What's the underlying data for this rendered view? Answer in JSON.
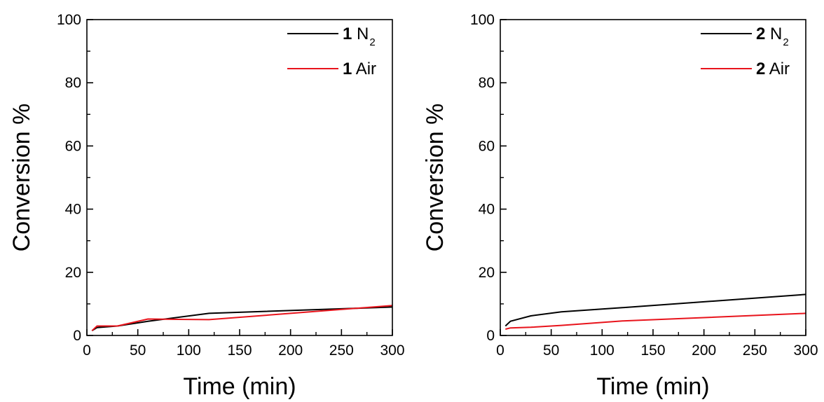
{
  "chart_data": [
    {
      "type": "line",
      "title": "",
      "xlabel": "Time (min)",
      "ylabel": "Conversion %",
      "xlim": [
        0,
        300
      ],
      "ylim": [
        0,
        100
      ],
      "xticks": [
        "0",
        "50",
        "100",
        "150",
        "200",
        "250",
        "300"
      ],
      "yticks": [
        "0",
        "20",
        "40",
        "60",
        "80",
        "100"
      ],
      "grid": false,
      "legend_position": "top-right",
      "series": [
        {
          "name": "1 N2",
          "legend_bold": "1",
          "legend_main": "N",
          "legend_sub": "2",
          "color": "#000000",
          "x": [
            5,
            10,
            30,
            60,
            120,
            300
          ],
          "y": [
            1.5,
            2.5,
            3.0,
            4.5,
            7.0,
            9.0
          ]
        },
        {
          "name": "1 Air",
          "legend_bold": "1",
          "legend_main": "Air",
          "legend_sub": "",
          "color": "#e8141c",
          "x": [
            5,
            10,
            30,
            60,
            120,
            300
          ],
          "y": [
            1.5,
            3.0,
            3.0,
            5.2,
            5.0,
            9.5
          ]
        }
      ]
    },
    {
      "type": "line",
      "title": "",
      "xlabel": "Time (min)",
      "ylabel": "Conversion %",
      "xlim": [
        0,
        300
      ],
      "ylim": [
        0,
        100
      ],
      "xticks": [
        "0",
        "50",
        "100",
        "150",
        "200",
        "250",
        "300"
      ],
      "yticks": [
        "0",
        "20",
        "40",
        "60",
        "80",
        "100"
      ],
      "grid": false,
      "legend_position": "top-right",
      "series": [
        {
          "name": "2 N2",
          "legend_bold": "2",
          "legend_main": "N",
          "legend_sub": "2",
          "color": "#000000",
          "x": [
            5,
            10,
            30,
            60,
            120,
            300
          ],
          "y": [
            3.0,
            4.5,
            6.2,
            7.5,
            8.8,
            13.0
          ]
        },
        {
          "name": "2 Air",
          "legend_bold": "2",
          "legend_main": "Air",
          "legend_sub": "",
          "color": "#e8141c",
          "x": [
            5,
            10,
            30,
            60,
            120,
            300
          ],
          "y": [
            2.0,
            2.4,
            2.6,
            3.2,
            4.6,
            7.0
          ]
        }
      ]
    }
  ]
}
